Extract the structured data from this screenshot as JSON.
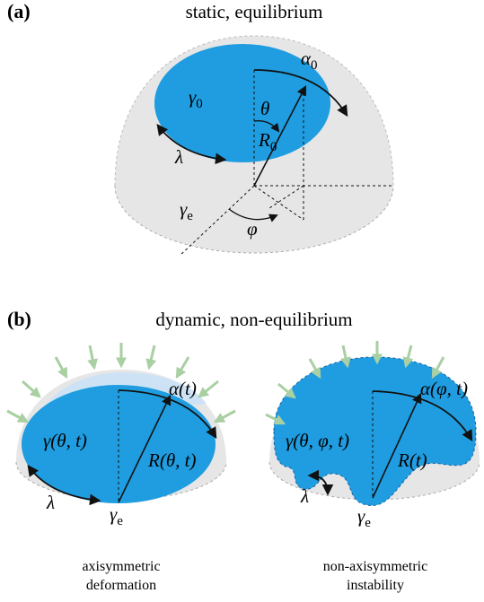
{
  "panel_a": {
    "label": "(a)",
    "title": "static, equilibrium",
    "cap_tension": {
      "symbol": "γ",
      "sub": "0"
    },
    "arc": {
      "symbol": "α",
      "sub": "0"
    },
    "angle_theta": "θ",
    "radius": {
      "symbol": "R",
      "sub": "0"
    },
    "line_tension": "λ",
    "env_tension": {
      "symbol": "γ",
      "sub": "e"
    },
    "angle_phi": "φ"
  },
  "panel_b": {
    "label": "(b)",
    "title": "dynamic, non-equilibrium",
    "left": {
      "arc": "α(t)",
      "cap_tension": "γ(θ, t)",
      "radius": "R(θ, t)",
      "line_tension": "λ",
      "env_tension": {
        "symbol": "γ",
        "sub": "e"
      },
      "caption": [
        "axisymmetric",
        "deformation"
      ]
    },
    "right": {
      "arc": "α(φ, t)",
      "cap_tension": "γ(θ, φ, t)",
      "radius": "R(t)",
      "line_tension": "λ",
      "env_tension": {
        "symbol": "γ",
        "sub": "e"
      },
      "caption": [
        "non-axisymmetric",
        "instability"
      ]
    }
  }
}
